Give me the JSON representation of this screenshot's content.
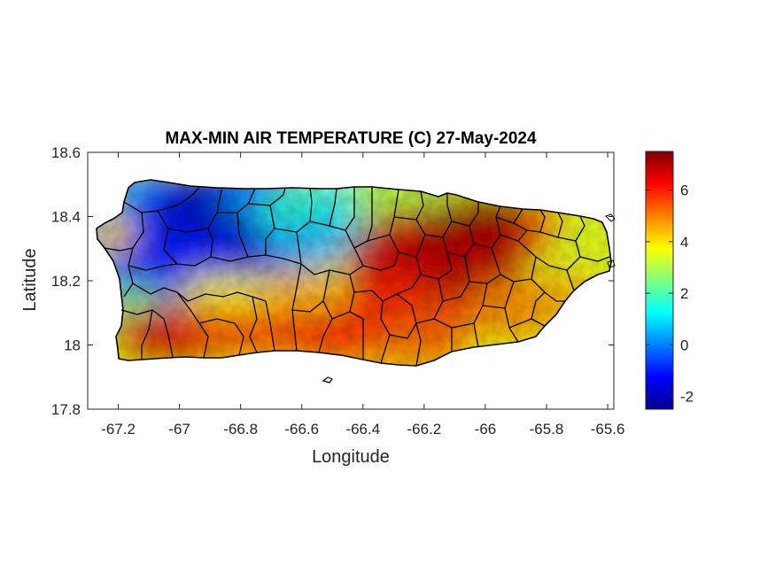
{
  "chart_data": {
    "type": "heatmap",
    "title": "MAX-MIN AIR TEMPERATURE (C) 27-May-2024",
    "xlabel": "Longitude",
    "ylabel": "Latitude",
    "xlim": [
      -67.3,
      -65.58
    ],
    "ylim": [
      17.8,
      18.6
    ],
    "xticks": [
      -67.2,
      -67,
      -66.8,
      -66.6,
      -66.4,
      -66.2,
      -66,
      -65.8,
      -65.6
    ],
    "xtick_labels": [
      "-67.2",
      "-67",
      "-66.8",
      "-66.6",
      "-66.4",
      "-66.2",
      "-66",
      "-65.8",
      "-65.6"
    ],
    "yticks": [
      17.8,
      18,
      18.2,
      18.4,
      18.6
    ],
    "ytick_labels": [
      "17.8",
      "18",
      "18.2",
      "18.4",
      "18.6"
    ],
    "colormap": "jet",
    "clim": [
      -2.5,
      7.5
    ],
    "colorbar_ticks": [
      -2,
      0,
      2,
      4,
      6
    ],
    "colorbar_tick_labels": [
      "-2",
      "0",
      "2",
      "4",
      "6"
    ],
    "region": "Puerto Rico",
    "field_summary": [
      {
        "area": "northwest interior (near -66.8, 18.33)",
        "value": -1.5
      },
      {
        "area": "west-central (near -67.1, 18.25)",
        "value": -1
      },
      {
        "area": "north coast (near -66.5, 18.45)",
        "value": 1.5
      },
      {
        "area": "western coast (near -67.25, 18.33)",
        "value": 3
      },
      {
        "area": "southwest coast (near -67.05, 18.0)",
        "value": 6
      },
      {
        "area": "south-central coast (near -66.6, 18.0)",
        "value": 5.5
      },
      {
        "area": "east-central interior (near -66.15, 18.28)",
        "value": 7
      },
      {
        "area": "northeast (near -66.0, 18.42)",
        "value": 7.3
      },
      {
        "area": "east coast (near -65.7, 18.25)",
        "value": 3.5
      },
      {
        "area": "southeast (near -65.9, 18.0)",
        "value": 4.5
      }
    ]
  }
}
